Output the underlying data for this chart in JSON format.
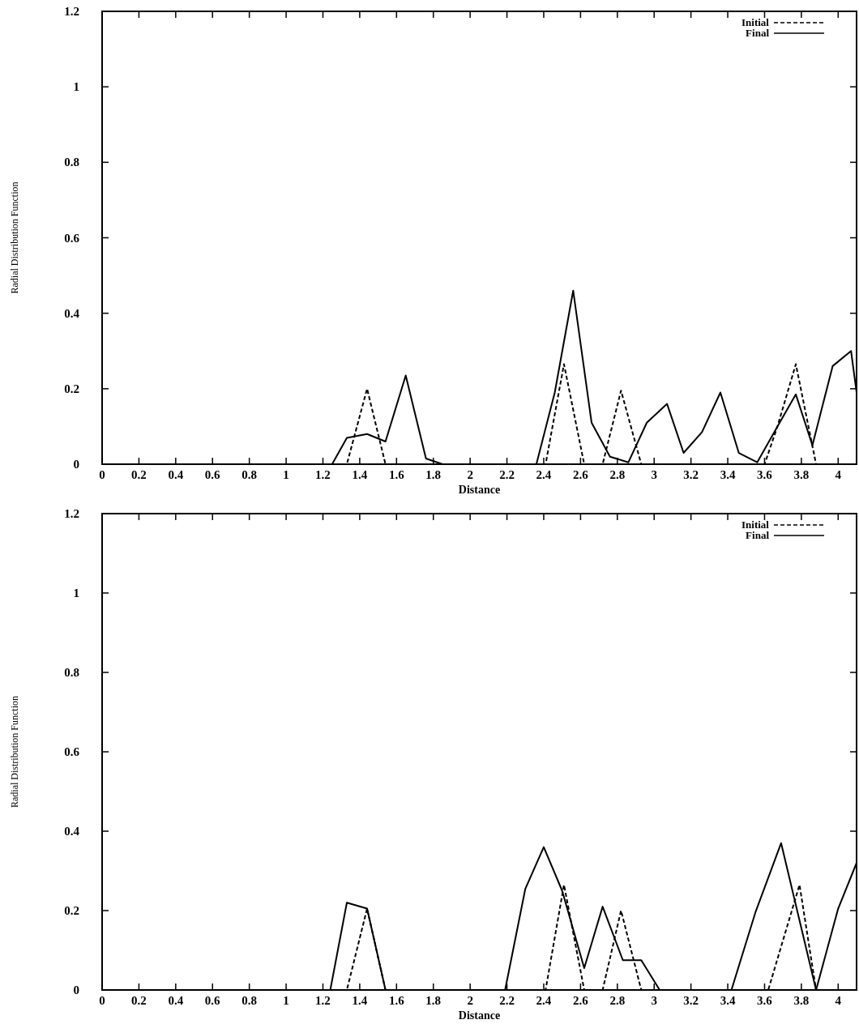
{
  "chart_data": [
    {
      "type": "line",
      "xlabel": "Distance",
      "ylabel": "Radial Distribution Function",
      "xlim": [
        0,
        4.1
      ],
      "ylim": [
        0,
        1.2
      ],
      "xticks": [
        0,
        0.2,
        0.4,
        0.6,
        0.8,
        1,
        1.2,
        1.4,
        1.6,
        1.8,
        2,
        2.2,
        2.4,
        2.6,
        2.8,
        3,
        3.2,
        3.4,
        3.6,
        3.8,
        4
      ],
      "yticks": [
        0,
        0.2,
        0.4,
        0.6,
        0.8,
        1,
        1.2
      ],
      "legend": "top right",
      "grid": false,
      "series": [
        {
          "name": "Initial",
          "color": "#000000",
          "line_style": "dashed",
          "x": [
            0,
            1.33,
            1.44,
            1.54,
            2.41,
            2.51,
            2.62,
            2.72,
            2.82,
            2.93,
            3.6,
            3.67,
            3.77,
            3.88,
            4.1
          ],
          "values": [
            0,
            0,
            0.2,
            0,
            0,
            0.265,
            0,
            0,
            0.195,
            0,
            0,
            0.1,
            0.265,
            0,
            0
          ]
        },
        {
          "name": "Final",
          "color": "#000000",
          "line_style": "solid",
          "x": [
            0,
            1.25,
            1.33,
            1.44,
            1.54,
            1.65,
            1.76,
            1.85,
            2.36,
            2.46,
            2.56,
            2.66,
            2.76,
            2.86,
            2.96,
            3.07,
            3.16,
            3.26,
            3.36,
            3.46,
            3.56,
            3.67,
            3.77,
            3.86,
            3.97,
            4.07,
            4.1
          ],
          "values": [
            0,
            0,
            0.07,
            0.08,
            0.06,
            0.235,
            0.015,
            0,
            0,
            0.19,
            0.46,
            0.11,
            0.02,
            0.005,
            0.11,
            0.16,
            0.03,
            0.085,
            0.19,
            0.03,
            0.005,
            0.1,
            0.185,
            0.05,
            0.26,
            0.3,
            0.19
          ]
        }
      ]
    },
    {
      "type": "line",
      "xlabel": "Distance",
      "ylabel": "Radial Distribution Function",
      "xlim": [
        0,
        4.1
      ],
      "ylim": [
        0,
        1.2
      ],
      "xticks": [
        0,
        0.2,
        0.4,
        0.6,
        0.8,
        1,
        1.2,
        1.4,
        1.6,
        1.8,
        2,
        2.2,
        2.4,
        2.6,
        2.8,
        3,
        3.2,
        3.4,
        3.6,
        3.8,
        4
      ],
      "yticks": [
        0,
        0.2,
        0.4,
        0.6,
        0.8,
        1,
        1.2
      ],
      "legend": "top right",
      "grid": false,
      "series": [
        {
          "name": "Initial",
          "color": "#000000",
          "line_style": "dashed",
          "x": [
            0,
            1.33,
            1.44,
            1.54,
            2.41,
            2.51,
            2.62,
            2.72,
            2.82,
            2.93,
            3.62,
            3.79,
            3.88,
            4.1
          ],
          "values": [
            0,
            0,
            0.205,
            0,
            0,
            0.265,
            0,
            0,
            0.2,
            0,
            0,
            0.265,
            0,
            0
          ]
        },
        {
          "name": "Final",
          "color": "#000000",
          "line_style": "solid",
          "x": [
            0,
            1.24,
            1.33,
            1.44,
            1.54,
            2.19,
            2.3,
            2.4,
            2.5,
            2.62,
            2.72,
            2.83,
            2.93,
            3.03,
            3.42,
            3.55,
            3.69,
            3.88,
            4.0,
            4.1
          ],
          "values": [
            0,
            0,
            0.22,
            0.205,
            0,
            0,
            0.255,
            0.36,
            0.25,
            0.055,
            0.21,
            0.075,
            0.075,
            0,
            0,
            0.195,
            0.37,
            0,
            0.205,
            0.32
          ]
        }
      ]
    }
  ]
}
